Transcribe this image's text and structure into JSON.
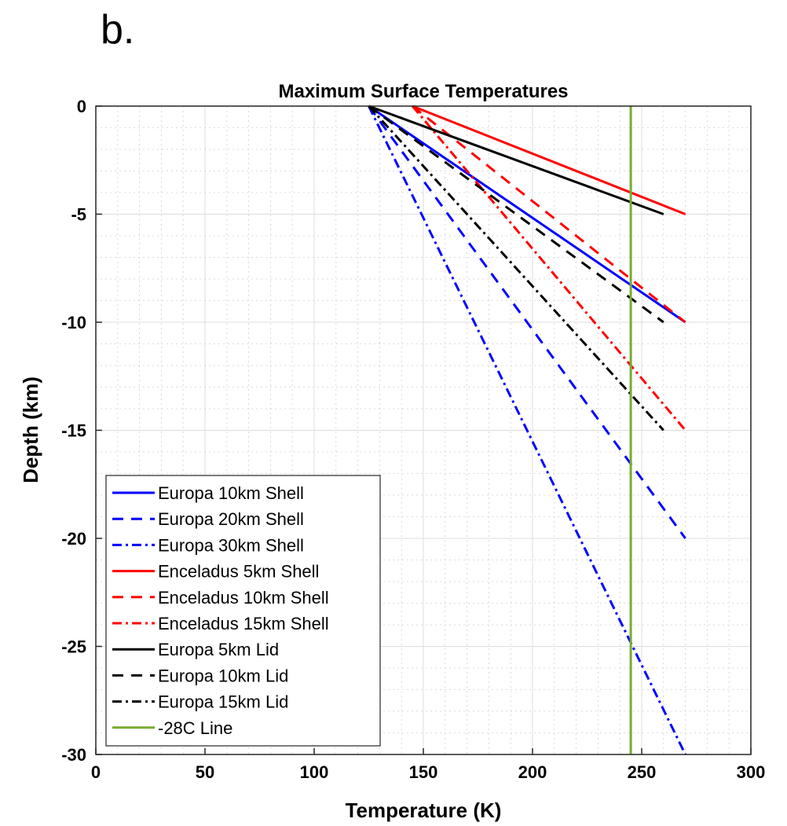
{
  "panel_label": "b.",
  "chart_data": {
    "type": "line",
    "title": "Maximum Surface Temperatures",
    "xlabel": "Temperature (K)",
    "ylabel": "Depth (km)",
    "xlim": [
      0,
      300
    ],
    "ylim": [
      -30,
      0
    ],
    "xticks": [
      0,
      50,
      100,
      150,
      200,
      250,
      300
    ],
    "yticks": [
      0,
      -5,
      -10,
      -15,
      -20,
      -25,
      -30
    ],
    "grid": true,
    "minor_grid": true,
    "legend_position": "bottom-left",
    "series": [
      {
        "name": "Europa 10km Shell",
        "color": "#0000ff",
        "style": "solid",
        "x": [
          125,
          270
        ],
        "y": [
          0,
          -10
        ]
      },
      {
        "name": "Europa 20km Shell",
        "color": "#0000ff",
        "style": "dashed",
        "x": [
          125,
          270
        ],
        "y": [
          0,
          -20
        ]
      },
      {
        "name": "Europa 30km Shell",
        "color": "#0000ff",
        "style": "dashdot",
        "x": [
          125,
          270
        ],
        "y": [
          0,
          -30
        ]
      },
      {
        "name": "Enceladus 5km Shell",
        "color": "#ff0000",
        "style": "solid",
        "x": [
          145,
          270
        ],
        "y": [
          0,
          -5
        ]
      },
      {
        "name": "Enceladus 10km Shell",
        "color": "#ff0000",
        "style": "dashed",
        "x": [
          145,
          270
        ],
        "y": [
          0,
          -10
        ]
      },
      {
        "name": "Enceladus 15km Shell",
        "color": "#ff0000",
        "style": "dashdot",
        "x": [
          145,
          270
        ],
        "y": [
          0,
          -15
        ]
      },
      {
        "name": "Europa 5km Lid",
        "color": "#000000",
        "style": "solid",
        "x": [
          125,
          260
        ],
        "y": [
          0,
          -5
        ]
      },
      {
        "name": "Europa 10km Lid",
        "color": "#000000",
        "style": "dashed",
        "x": [
          125,
          260
        ],
        "y": [
          0,
          -10
        ]
      },
      {
        "name": "Europa 15km Lid",
        "color": "#000000",
        "style": "dashdot",
        "x": [
          125,
          260
        ],
        "y": [
          0,
          -15
        ]
      },
      {
        "name": "-28C Line",
        "color": "#77ac30",
        "style": "solid",
        "x": [
          245,
          245
        ],
        "y": [
          0,
          -30
        ]
      }
    ]
  }
}
